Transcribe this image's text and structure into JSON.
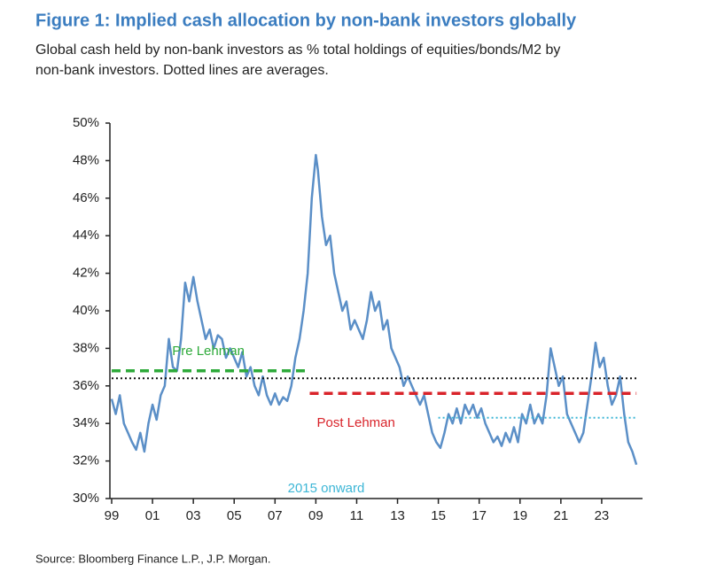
{
  "chart_data": {
    "type": "line",
    "title": "Figure 1: Implied cash allocation by non-bank investors globally",
    "subtitle_lines": [
      "Global cash held by non-bank investors as % total holdings of equities/bonds/M2 by",
      "non-bank investors. Dotted lines are averages."
    ],
    "source": "Source: Bloomberg Finance L.P., J.P. Morgan.",
    "xlim": [
      1999,
      2025
    ],
    "ylim": [
      30,
      50
    ],
    "xticks": [
      {
        "value": 1999,
        "label": "99"
      },
      {
        "value": 2001,
        "label": "01"
      },
      {
        "value": 2003,
        "label": "03"
      },
      {
        "value": 2005,
        "label": "05"
      },
      {
        "value": 2007,
        "label": "07"
      },
      {
        "value": 2009,
        "label": "09"
      },
      {
        "value": 2011,
        "label": "11"
      },
      {
        "value": 2013,
        "label": "13"
      },
      {
        "value": 2015,
        "label": "15"
      },
      {
        "value": 2017,
        "label": "17"
      },
      {
        "value": 2019,
        "label": "19"
      },
      {
        "value": 2021,
        "label": "21"
      },
      {
        "value": 2023,
        "label": "23"
      }
    ],
    "yticks": [
      {
        "value": 30,
        "label": "30%"
      },
      {
        "value": 32,
        "label": "32%"
      },
      {
        "value": 34,
        "label": "34%"
      },
      {
        "value": 36,
        "label": "36%"
      },
      {
        "value": 38,
        "label": "38%"
      },
      {
        "value": 40,
        "label": "40%"
      },
      {
        "value": 42,
        "label": "42%"
      },
      {
        "value": 44,
        "label": "44%"
      },
      {
        "value": 46,
        "label": "46%"
      },
      {
        "value": 48,
        "label": "48%"
      },
      {
        "value": 50,
        "label": "50%"
      }
    ],
    "series": [
      {
        "color": "#5b8fc7",
        "dash": "solid",
        "x": [
          1999.0,
          1999.2,
          1999.4,
          1999.6,
          1999.8,
          2000.0,
          2000.2,
          2000.4,
          2000.6,
          2000.8,
          2001.0,
          2001.2,
          2001.4,
          2001.6,
          2001.8,
          2002.0,
          2002.2,
          2002.4,
          2002.6,
          2002.8,
          2003.0,
          2003.2,
          2003.4,
          2003.6,
          2003.8,
          2004.0,
          2004.2,
          2004.4,
          2004.6,
          2004.8,
          2005.0,
          2005.2,
          2005.4,
          2005.6,
          2005.8,
          2006.0,
          2006.2,
          2006.4,
          2006.6,
          2006.8,
          2007.0,
          2007.2,
          2007.4,
          2007.6,
          2007.8,
          2008.0,
          2008.2,
          2008.4,
          2008.6,
          2008.8,
          2009.0,
          2009.1,
          2009.3,
          2009.5,
          2009.7,
          2009.9,
          2010.1,
          2010.3,
          2010.5,
          2010.7,
          2010.9,
          2011.1,
          2011.3,
          2011.5,
          2011.7,
          2011.9,
          2012.1,
          2012.3,
          2012.5,
          2012.7,
          2012.9,
          2013.1,
          2013.3,
          2013.5,
          2013.7,
          2013.9,
          2014.1,
          2014.3,
          2014.5,
          2014.7,
          2014.9,
          2015.1,
          2015.3,
          2015.5,
          2015.7,
          2015.9,
          2016.1,
          2016.3,
          2016.5,
          2016.7,
          2016.9,
          2017.1,
          2017.3,
          2017.5,
          2017.7,
          2017.9,
          2018.1,
          2018.3,
          2018.5,
          2018.7,
          2018.9,
          2019.1,
          2019.3,
          2019.5,
          2019.7,
          2019.9,
          2020.1,
          2020.3,
          2020.5,
          2020.7,
          2020.9,
          2021.1,
          2021.3,
          2021.5,
          2021.7,
          2021.9,
          2022.1,
          2022.3,
          2022.5,
          2022.7,
          2022.9,
          2023.1,
          2023.3,
          2023.5,
          2023.7,
          2023.9,
          2024.1,
          2024.3,
          2024.5,
          2024.7
        ],
        "values": [
          35.3,
          34.5,
          35.5,
          34.0,
          33.5,
          33.0,
          32.6,
          33.5,
          32.5,
          34.0,
          35.0,
          34.2,
          35.5,
          36.0,
          38.5,
          37.0,
          36.8,
          38.5,
          41.5,
          40.5,
          41.8,
          40.5,
          39.5,
          38.5,
          39.0,
          38.0,
          38.7,
          38.5,
          37.5,
          38.0,
          37.5,
          37.0,
          37.8,
          36.5,
          37.0,
          36.0,
          35.5,
          36.5,
          35.5,
          35.0,
          35.6,
          35.0,
          35.4,
          35.2,
          36.0,
          37.5,
          38.5,
          40.0,
          42.0,
          46.0,
          48.3,
          47.5,
          45.0,
          43.5,
          44.0,
          42.0,
          41.0,
          40.0,
          40.5,
          39.0,
          39.5,
          39.0,
          38.5,
          39.5,
          41.0,
          40.0,
          40.5,
          39.0,
          39.5,
          38.0,
          37.5,
          37.0,
          36.0,
          36.5,
          36.0,
          35.5,
          35.0,
          35.5,
          34.5,
          33.5,
          33.0,
          32.7,
          33.5,
          34.5,
          34.0,
          34.8,
          34.0,
          35.0,
          34.5,
          35.0,
          34.3,
          34.8,
          34.0,
          33.5,
          33.0,
          33.3,
          32.8,
          33.5,
          33.0,
          33.8,
          33.0,
          34.5,
          34.0,
          35.0,
          34.0,
          34.5,
          34.0,
          35.5,
          38.0,
          37.0,
          36.0,
          36.5,
          34.5,
          34.0,
          33.5,
          33.0,
          33.5,
          35.0,
          36.5,
          38.3,
          37.0,
          37.5,
          36.0,
          35.0,
          35.5,
          36.5,
          34.5,
          33.0,
          32.5,
          31.8
        ]
      },
      {
        "color": "#111111",
        "dash": "dotted",
        "x": [
          1999,
          2024.7
        ],
        "values": [
          36.4,
          36.4
        ]
      },
      {
        "name": "Pre Lehman",
        "color": "#2eaa3a",
        "dash": "dashed",
        "x": [
          1999,
          2008.6
        ],
        "values": [
          36.8,
          36.8
        ]
      },
      {
        "name": "Post Lehman",
        "color": "#d9232a",
        "dash": "dashed",
        "x": [
          2008.7,
          2024.7
        ],
        "values": [
          35.6,
          35.6
        ]
      },
      {
        "name": "2015 onward",
        "color": "#3cb6d6",
        "dash": "dotted",
        "x": [
          2015,
          2024.7
        ],
        "values": [
          34.3,
          34.3
        ]
      }
    ]
  }
}
